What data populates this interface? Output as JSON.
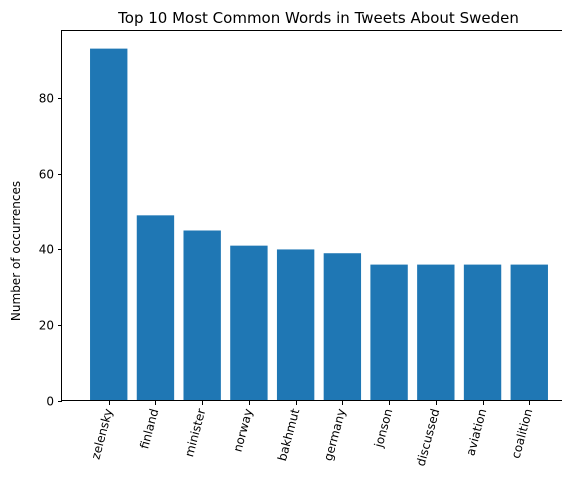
{
  "chart_data": {
    "type": "bar",
    "title": "Top 10 Most Common Words in Tweets About Sweden",
    "xlabel": "",
    "ylabel": "Number of occurrences",
    "categories": [
      "zelensky",
      "finland",
      "minister",
      "norway",
      "bakhmut",
      "germany",
      "jonson",
      "discussed",
      "aviation",
      "coalition"
    ],
    "values": [
      93,
      49,
      45,
      41,
      40,
      39,
      36,
      36,
      36,
      36
    ],
    "ylim": [
      0,
      97.65
    ],
    "yticks": [
      0,
      20,
      40,
      60,
      80
    ],
    "xtick_rotation": 75,
    "grid": false,
    "legend": "none",
    "bar_color": "#1f77b4"
  }
}
